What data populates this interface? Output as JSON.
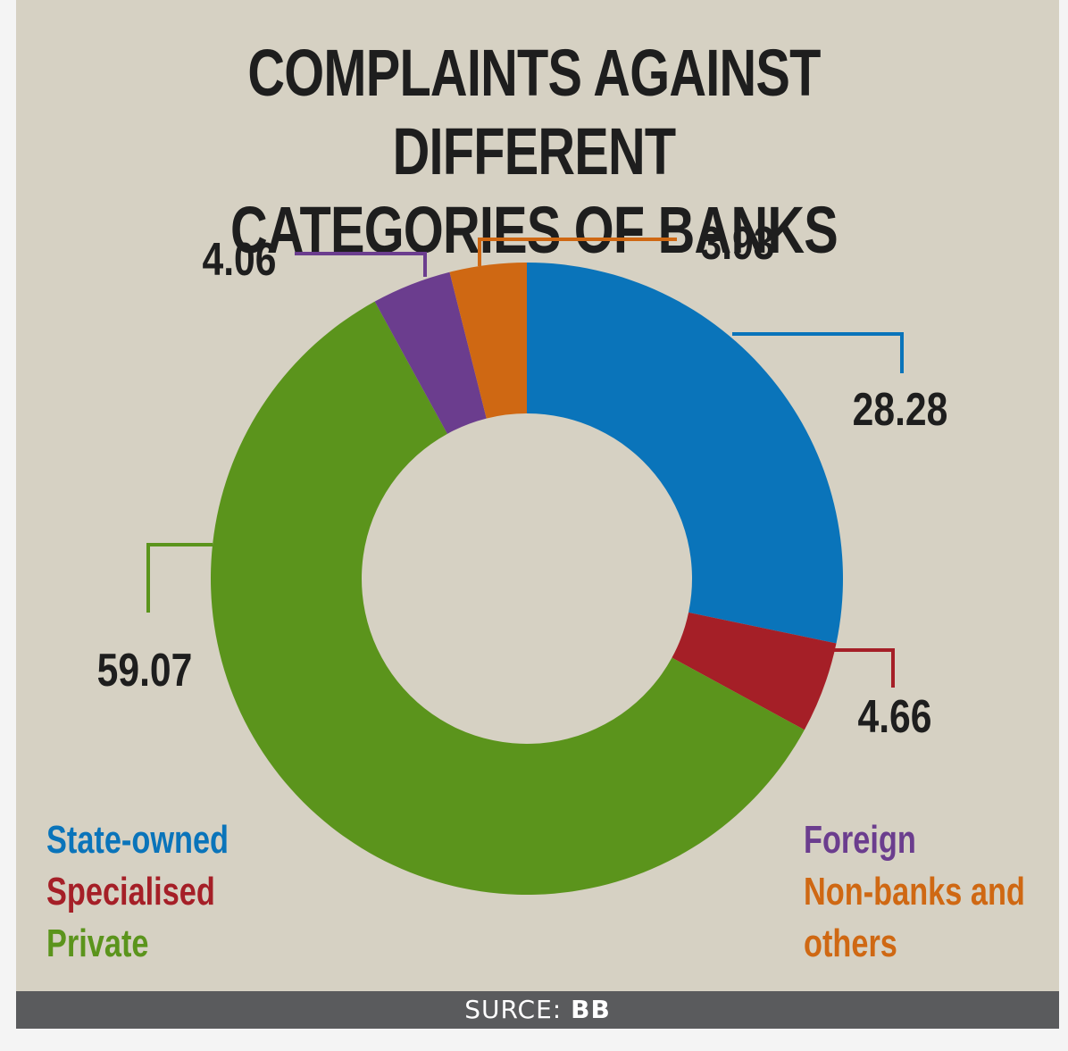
{
  "title_lines": [
    "COMPLAINTS AGAINST DIFFERENT",
    "CATEGORIES OF BANKS"
  ],
  "chart_data": {
    "type": "pie",
    "categories": [
      "State-owned",
      "Specialised",
      "Private",
      "Foreign",
      "Non-banks and others"
    ],
    "values": [
      28.28,
      4.66,
      59.07,
      4.06,
      3.93
    ],
    "value_labels": [
      "28.28",
      "4.66",
      "59.07",
      "4.06",
      "3.93"
    ],
    "colors": [
      "#0a74ba",
      "#a51f27",
      "#5b941c",
      "#6b3d8e",
      "#cf6813"
    ],
    "donut": true,
    "legend_placement": "bottom-left and bottom-right"
  },
  "legend": {
    "left": [
      {
        "label": "State-owned",
        "color": "#0a74ba"
      },
      {
        "label": "Specialised",
        "color": "#a51f27"
      },
      {
        "label": "Private",
        "color": "#5b941c"
      }
    ],
    "right": [
      {
        "label": "Foreign",
        "color": "#6b3d8e"
      },
      {
        "label": "Non-banks and",
        "color": "#cf6813"
      },
      {
        "label": "others",
        "color": "#cf6813"
      }
    ]
  },
  "footer": {
    "prefix": "SURCE: ",
    "source": "BB"
  }
}
